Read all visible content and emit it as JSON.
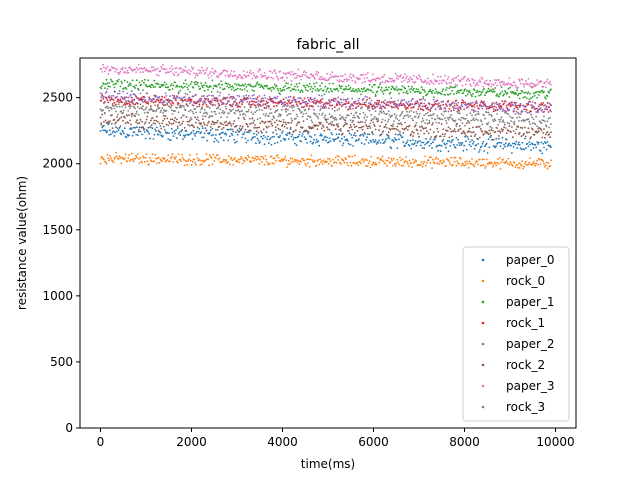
{
  "chart_data": {
    "type": "scatter",
    "title": "fabric_all",
    "xlabel": "time(ms)",
    "ylabel": "resistance value(ohm)",
    "xlim": [
      -450,
      10450
    ],
    "ylim": [
      0,
      2800
    ],
    "xticks": [
      0,
      2000,
      4000,
      6000,
      8000,
      10000
    ],
    "yticks": [
      0,
      500,
      1000,
      1500,
      2000,
      2500
    ],
    "grid": false,
    "legend_position": "lower-right",
    "series": [
      {
        "name": "paper_0",
        "color": "#1f77b4",
        "x_start": 0,
        "x_end": 9900,
        "y_start": 2250,
        "y_end": 2130,
        "spread": 70
      },
      {
        "name": "rock_0",
        "color": "#ff7f0e",
        "x_start": 0,
        "x_end": 9900,
        "y_start": 2040,
        "y_end": 2000,
        "spread": 50
      },
      {
        "name": "paper_1",
        "color": "#2ca02c",
        "x_start": 0,
        "x_end": 9900,
        "y_start": 2600,
        "y_end": 2530,
        "spread": 50
      },
      {
        "name": "rock_1",
        "color": "#d62728",
        "x_start": 0,
        "x_end": 9900,
        "y_start": 2480,
        "y_end": 2430,
        "spread": 50
      },
      {
        "name": "paper_2",
        "color": "#9467bd",
        "x_start": 0,
        "x_end": 9900,
        "y_start": 2510,
        "y_end": 2420,
        "spread": 60
      },
      {
        "name": "rock_2",
        "color": "#8c564b",
        "x_start": 0,
        "x_end": 9900,
        "y_start": 2330,
        "y_end": 2230,
        "spread": 70
      },
      {
        "name": "paper_3",
        "color": "#e377c2",
        "x_start": 0,
        "x_end": 9900,
        "y_start": 2720,
        "y_end": 2600,
        "spread": 50
      },
      {
        "name": "rock_3",
        "color": "#7f7f7f",
        "x_start": 0,
        "x_end": 9900,
        "y_start": 2420,
        "y_end": 2320,
        "spread": 70
      }
    ]
  }
}
